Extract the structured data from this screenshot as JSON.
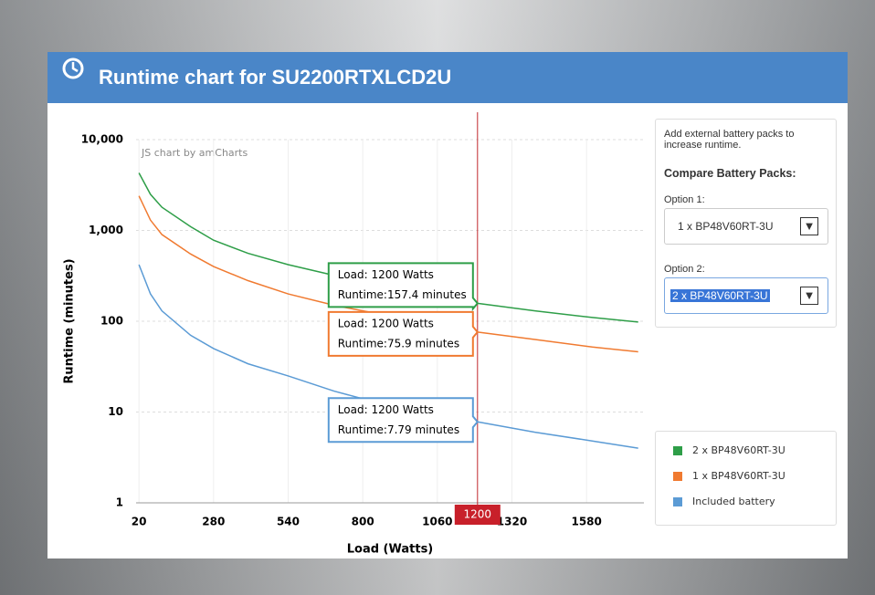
{
  "header": {
    "title": "Runtime chart for SU2200RTXLCD2U"
  },
  "panel": {
    "intro": "Add external battery packs to increase runtime.",
    "heading": "Compare Battery Packs:",
    "option1_label": "Option 1:",
    "option1_value": "1 x BP48V60RT-3U",
    "option2_label": "Option 2:",
    "option2_value": "2 x BP48V60RT-3U"
  },
  "chart_data": {
    "type": "line",
    "credit": "JS chart by amCharts",
    "x_label": "Load (Watts)",
    "y_label": "Runtime (minutes)",
    "x": [
      20,
      60,
      100,
      200,
      280,
      400,
      540,
      700,
      800,
      1000,
      1200,
      1400,
      1600,
      1760
    ],
    "series": [
      {
        "name": "2 x BP48V60RT-3U",
        "color": "#2e9e48",
        "values": [
          4300,
          2500,
          1800,
          1100,
          780,
          560,
          420,
          320,
          270,
          200,
          157.4,
          130,
          110,
          98
        ]
      },
      {
        "name": "1 x BP48V60RT-3U",
        "color": "#f07a30",
        "values": [
          2400,
          1300,
          900,
          550,
          400,
          280,
          200,
          150,
          130,
          100,
          75.9,
          63,
          52,
          46
        ]
      },
      {
        "name": "Included battery",
        "color": "#5b9bd5",
        "values": [
          420,
          200,
          130,
          70,
          50,
          34,
          25,
          17,
          14,
          10,
          7.79,
          6,
          4.8,
          4
        ]
      }
    ],
    "xlim": [
      10,
      1780
    ],
    "xticks": [
      20,
      280,
      540,
      800,
      1060,
      1320,
      1580
    ],
    "ylim": [
      1,
      10000
    ],
    "log_y": true,
    "yticks": [
      1,
      10,
      100,
      {
        "value": 1000,
        "label": "1,000"
      },
      {
        "value": 10000,
        "label": "10,000"
      }
    ],
    "grid": true,
    "cursor": 1200,
    "tooltips": [
      {
        "load": "Load: 1200 Watts",
        "runtime": "Runtime:157.4 minutes"
      },
      {
        "load": "Load: 1200 Watts",
        "runtime": "Runtime:75.9 minutes"
      },
      {
        "load": "Load: 1200 Watts",
        "runtime": "Runtime:7.79 minutes"
      }
    ]
  }
}
